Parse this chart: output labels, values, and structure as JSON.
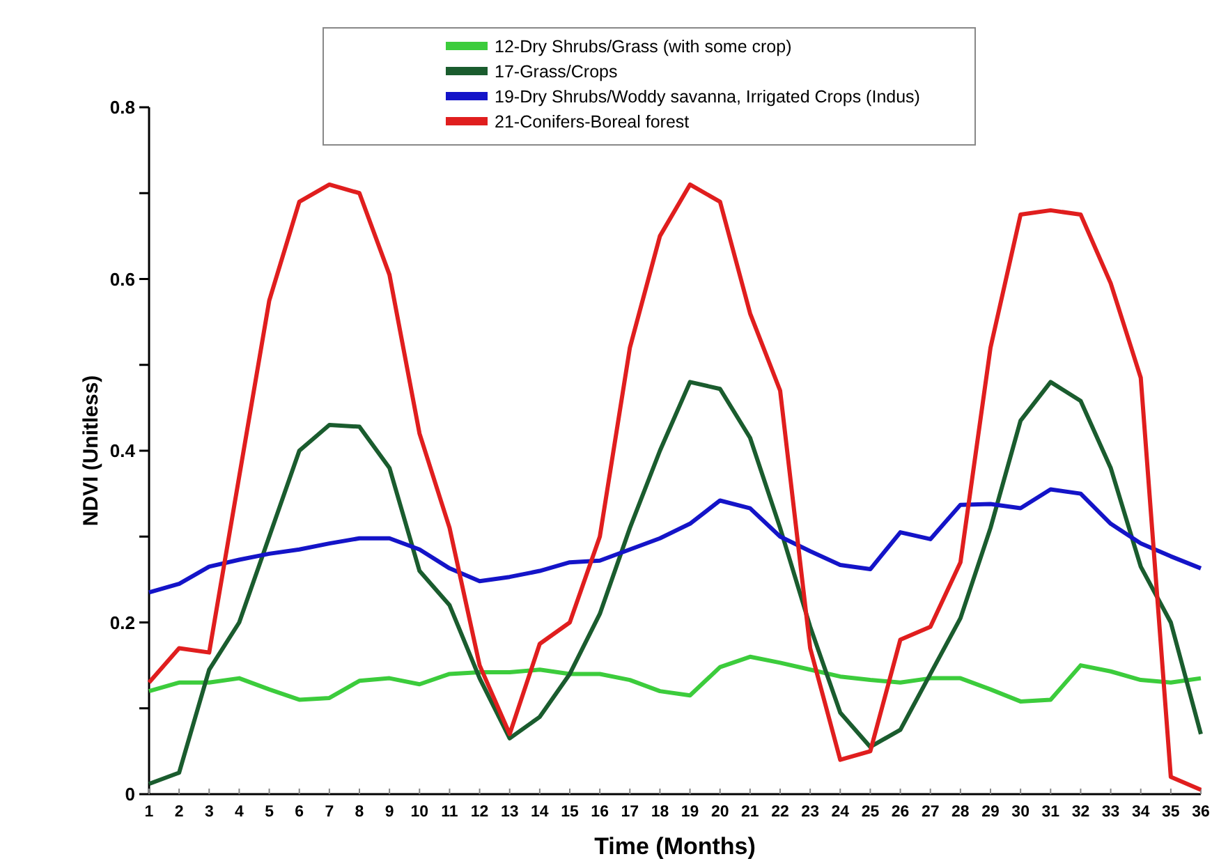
{
  "chart_data": {
    "type": "line",
    "xlabel": "Time (Months)",
    "ylabel": "NDVI (Unitless)",
    "x": [
      1,
      2,
      3,
      4,
      5,
      6,
      7,
      8,
      9,
      10,
      11,
      12,
      13,
      14,
      15,
      16,
      17,
      18,
      19,
      20,
      21,
      22,
      23,
      24,
      25,
      26,
      27,
      28,
      29,
      30,
      31,
      32,
      33,
      34,
      35,
      36
    ],
    "xlim": [
      1,
      36
    ],
    "xticks": [
      1,
      2,
      3,
      4,
      5,
      6,
      7,
      8,
      9,
      10,
      11,
      12,
      13,
      14,
      15,
      16,
      17,
      18,
      19,
      20,
      21,
      22,
      23,
      24,
      25,
      26,
      27,
      28,
      29,
      30,
      31,
      32,
      33,
      34,
      35,
      36
    ],
    "ylim": [
      0,
      0.8
    ],
    "yticks": [
      0,
      {
        "value": 0.1,
        "label": null
      },
      0.2,
      {
        "value": 0.3,
        "label": null
      },
      0.4,
      {
        "value": 0.5,
        "label": null
      },
      0.6,
      {
        "value": 0.7,
        "label": null
      },
      0.8
    ],
    "grid": false,
    "legend": "top",
    "marker": "none",
    "line_style": "solid",
    "series": [
      {
        "name": "12-Dry Shrubs/Grass (with some crop)",
        "color": "#3ccc3c",
        "values": [
          0.12,
          0.13,
          0.13,
          0.135,
          0.122,
          0.11,
          0.112,
          0.132,
          0.135,
          0.128,
          0.14,
          0.142,
          0.142,
          0.145,
          0.14,
          0.14,
          0.133,
          0.12,
          0.115,
          0.148,
          0.16,
          0.153,
          0.145,
          0.137,
          0.133,
          0.13,
          0.135,
          0.135,
          0.122,
          0.108,
          0.11,
          0.15,
          0.143,
          0.133,
          0.13,
          0.135
        ]
      },
      {
        "name": "17-Grass/Crops",
        "color": "#1a5c2e",
        "values": [
          0.012,
          0.025,
          0.145,
          0.2,
          0.3,
          0.4,
          0.43,
          0.428,
          0.38,
          0.26,
          0.22,
          0.135,
          0.065,
          0.09,
          0.14,
          0.21,
          0.31,
          0.4,
          0.48,
          0.472,
          0.415,
          0.31,
          0.195,
          0.095,
          0.055,
          0.075,
          0.14,
          0.205,
          0.31,
          0.435,
          0.48,
          0.458,
          0.38,
          0.265,
          0.2,
          0.07
        ]
      },
      {
        "name": "19-Dry Shrubs/Woddy savanna, Irrigated Crops (Indus)",
        "color": "#1414c8",
        "values": [
          0.235,
          0.245,
          0.265,
          0.273,
          0.28,
          0.285,
          0.292,
          0.298,
          0.298,
          0.285,
          0.263,
          0.248,
          0.253,
          0.26,
          0.27,
          0.272,
          0.285,
          0.298,
          0.315,
          0.342,
          0.333,
          0.3,
          0.283,
          0.267,
          0.262,
          0.305,
          0.297,
          0.337,
          0.338,
          0.333,
          0.355,
          0.35,
          0.315,
          0.292,
          0.277,
          0.263
        ]
      },
      {
        "name": "21-Conifers-Boreal forest",
        "color": "#e01e1e",
        "values": [
          0.13,
          0.17,
          0.165,
          0.37,
          0.575,
          0.69,
          0.71,
          0.7,
          0.605,
          0.42,
          0.31,
          0.15,
          0.07,
          0.175,
          0.2,
          0.3,
          0.52,
          0.65,
          0.71,
          0.69,
          0.56,
          0.47,
          0.17,
          0.04,
          0.05,
          0.18,
          0.195,
          0.27,
          0.52,
          0.675,
          0.68,
          0.675,
          0.595,
          0.485,
          0.02,
          0.005
        ]
      }
    ]
  }
}
